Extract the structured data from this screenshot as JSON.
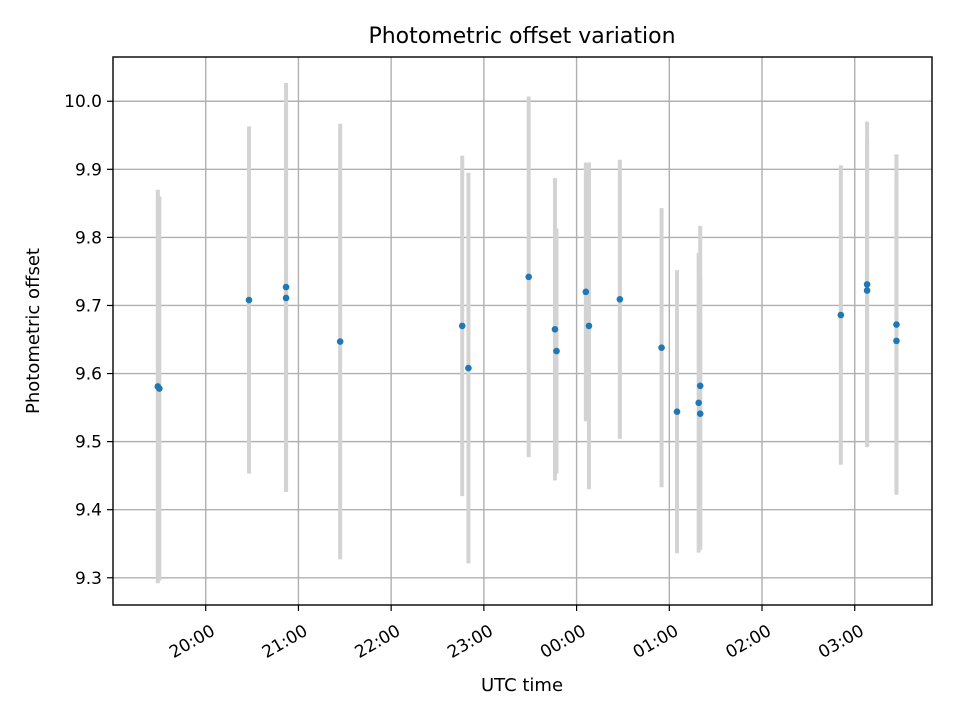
{
  "chart_data": {
    "type": "scatter",
    "title": "Photometric offset variation",
    "xlabel": "UTC time",
    "ylabel": "Photometric offset",
    "xlim": [
      "2024-01-01T19:00",
      "2024-01-02T03:50"
    ],
    "ylim": [
      9.26,
      10.065
    ],
    "x_ticks": [
      {
        "t": "2024-01-01T20:00",
        "label": "20:00"
      },
      {
        "t": "2024-01-01T21:00",
        "label": "21:00"
      },
      {
        "t": "2024-01-01T22:00",
        "label": "22:00"
      },
      {
        "t": "2024-01-01T23:00",
        "label": "23:00"
      },
      {
        "t": "2024-01-02T00:00",
        "label": "00:00"
      },
      {
        "t": "2024-01-02T01:00",
        "label": "01:00"
      },
      {
        "t": "2024-01-02T02:00",
        "label": "02:00"
      },
      {
        "t": "2024-01-02T03:00",
        "label": "03:00"
      }
    ],
    "y_ticks": [
      9.3,
      9.4,
      9.5,
      9.6,
      9.7,
      9.8,
      9.9,
      10.0
    ],
    "y_tick_labels": [
      "9.3",
      "9.4",
      "9.5",
      "9.6",
      "9.7",
      "9.8",
      "9.9",
      "10.0"
    ],
    "grid": true,
    "colors": {
      "points": "#1f77b4",
      "errorbars": "#d3d3d3",
      "grid": "#b0b0b0"
    },
    "points": [
      {
        "x": "2024-01-01T19:29",
        "y": 9.581,
        "yerr": 0.289
      },
      {
        "x": "2024-01-01T19:30",
        "y": 9.578,
        "yerr": 0.282
      },
      {
        "x": "2024-01-01T20:28",
        "y": 9.708,
        "yerr": 0.255
      },
      {
        "x": "2024-01-01T20:52",
        "y": 9.727,
        "yerr": 0.3
      },
      {
        "x": "2024-01-01T20:52",
        "y": 9.711,
        "yerr": 0.285
      },
      {
        "x": "2024-01-01T21:27",
        "y": 9.647,
        "yerr": 0.32
      },
      {
        "x": "2024-01-01T22:46",
        "y": 9.67,
        "yerr": 0.25
      },
      {
        "x": "2024-01-01T22:50",
        "y": 9.608,
        "yerr": 0.287
      },
      {
        "x": "2024-01-01T23:29",
        "y": 9.742,
        "yerr": 0.265
      },
      {
        "x": "2024-01-01T23:46",
        "y": 9.665,
        "yerr": 0.222
      },
      {
        "x": "2024-01-01T23:47",
        "y": 9.633,
        "yerr": 0.18
      },
      {
        "x": "2024-01-02T00:06",
        "y": 9.72,
        "yerr": 0.19
      },
      {
        "x": "2024-01-02T00:08",
        "y": 9.67,
        "yerr": 0.24
      },
      {
        "x": "2024-01-02T00:28",
        "y": 9.709,
        "yerr": 0.205
      },
      {
        "x": "2024-01-02T00:55",
        "y": 9.638,
        "yerr": 0.205
      },
      {
        "x": "2024-01-02T01:05",
        "y": 9.544,
        "yerr": 0.208
      },
      {
        "x": "2024-01-02T01:19",
        "y": 9.557,
        "yerr": 0.22
      },
      {
        "x": "2024-01-02T01:20",
        "y": 9.582,
        "yerr": 0.235
      },
      {
        "x": "2024-01-02T01:20",
        "y": 9.541,
        "yerr": 0.2
      },
      {
        "x": "2024-01-02T02:51",
        "y": 9.686,
        "yerr": 0.22
      },
      {
        "x": "2024-01-02T03:08",
        "y": 9.731,
        "yerr": 0.239
      },
      {
        "x": "2024-01-02T03:08",
        "y": 9.722,
        "yerr": 0.222
      },
      {
        "x": "2024-01-02T03:27",
        "y": 9.672,
        "yerr": 0.25
      },
      {
        "x": "2024-01-02T03:27",
        "y": 9.648,
        "yerr": 0.222
      }
    ]
  }
}
